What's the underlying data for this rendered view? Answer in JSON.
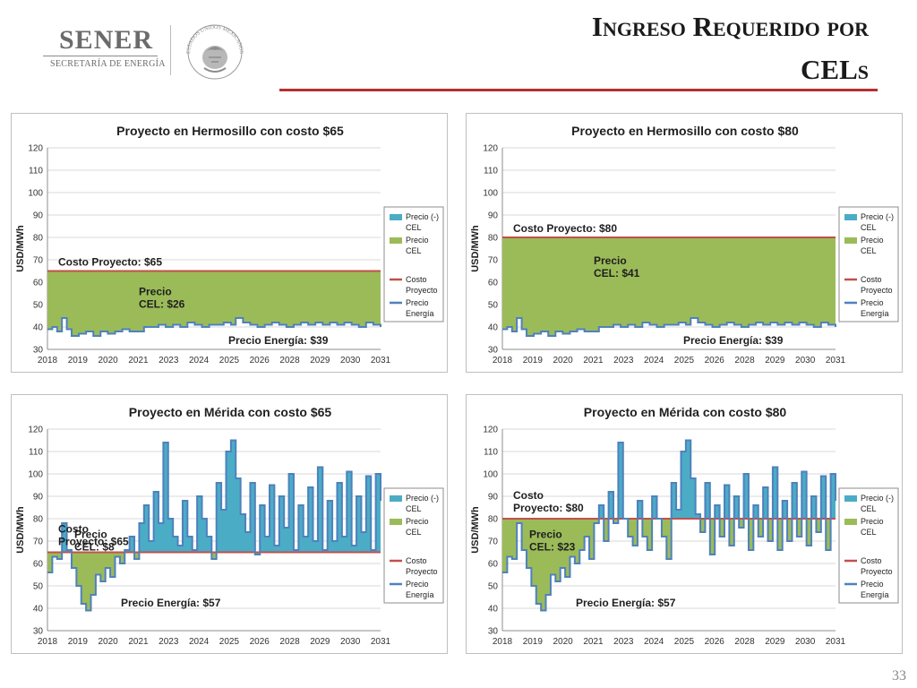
{
  "header": {
    "logo_name": "SENER",
    "logo_subtitle": "SECRETARÍA DE ENERGÍA",
    "seal_text": "ESTADOS UNIDOS MEXICANOS",
    "title_line1": "Ingreso Requerido por",
    "title_line2": "CELs"
  },
  "page_number": "33",
  "colors": {
    "cel_negative": "#4bacc6",
    "cel": "#9bbb59",
    "cost_line": "#c0504d",
    "energy_line": "#4f81bd",
    "title_rule": "#b53030"
  },
  "chart_data": [
    {
      "type": "area",
      "title": "Proyecto en Hermosillo con costo $65",
      "ylabel": "USD/MWh",
      "ylim": [
        30,
        120
      ],
      "yticks": [
        30,
        40,
        50,
        60,
        70,
        80,
        90,
        100,
        110,
        120
      ],
      "xlabels": [
        "2018",
        "2019",
        "2020",
        "2021",
        "2023",
        "2024",
        "2025",
        "2026",
        "2028",
        "2029",
        "2030",
        "2031"
      ],
      "cost": 65,
      "legend": [
        "Precio (-) CEL",
        "Precio CEL",
        "Costo Proyecto",
        "Precio Energía"
      ],
      "annotations": [
        {
          "text": "Costo Proyecto: $65",
          "anchor": "above-cost-left"
        },
        {
          "text": "Precio\nCEL: $26",
          "anchor": "mid-center"
        },
        {
          "text": "Precio Energía: $39",
          "anchor": "bottom-right"
        }
      ],
      "x": [
        2018.0,
        2018.2,
        2018.4,
        2018.6,
        2018.8,
        2019.0,
        2019.3,
        2019.6,
        2019.9,
        2020.2,
        2020.5,
        2020.8,
        2021.1,
        2021.4,
        2021.7,
        2022.0,
        2022.3,
        2022.6,
        2022.9,
        2023.2,
        2023.5,
        2023.8,
        2024.1,
        2024.4,
        2024.7,
        2025.0,
        2025.3,
        2025.6,
        2025.8,
        2026.1,
        2026.4,
        2026.7,
        2027.0,
        2027.3,
        2027.6,
        2027.9,
        2028.2,
        2028.5,
        2028.8,
        2029.1,
        2029.4,
        2029.7,
        2030.0,
        2030.3,
        2030.6,
        2030.9,
        2031.2,
        2031.5,
        2031.8
      ],
      "energy": [
        39,
        40,
        38,
        44,
        39,
        36,
        37,
        38,
        36,
        38,
        37,
        38,
        39,
        38,
        38,
        40,
        40,
        41,
        40,
        41,
        40,
        42,
        41,
        40,
        41,
        41,
        42,
        41,
        44,
        42,
        41,
        40,
        41,
        42,
        41,
        40,
        41,
        42,
        41,
        42,
        41,
        42,
        41,
        42,
        41,
        40,
        42,
        41,
        40
      ]
    },
    {
      "type": "area",
      "title": "Proyecto en Hermosillo con costo $80",
      "ylabel": "USD/MWh",
      "ylim": [
        30,
        120
      ],
      "yticks": [
        30,
        40,
        50,
        60,
        70,
        80,
        90,
        100,
        110,
        120
      ],
      "xlabels": [
        "2018",
        "2019",
        "2020",
        "2021",
        "2023",
        "2024",
        "2025",
        "2026",
        "2028",
        "2029",
        "2030",
        "2031"
      ],
      "cost": 80,
      "legend": [
        "Precio (-) CEL",
        "Precio CEL",
        "Costo Proyecto",
        "Precio Energía"
      ],
      "annotations": [
        {
          "text": "Costo Proyecto: $80",
          "anchor": "above-cost-left"
        },
        {
          "text": "Precio\nCEL: $41",
          "anchor": "mid-center"
        },
        {
          "text": "Precio Energía: $39",
          "anchor": "bottom-right"
        }
      ],
      "x": [
        2018.0,
        2018.2,
        2018.4,
        2018.6,
        2018.8,
        2019.0,
        2019.3,
        2019.6,
        2019.9,
        2020.2,
        2020.5,
        2020.8,
        2021.1,
        2021.4,
        2021.7,
        2022.0,
        2022.3,
        2022.6,
        2022.9,
        2023.2,
        2023.5,
        2023.8,
        2024.1,
        2024.4,
        2024.7,
        2025.0,
        2025.3,
        2025.6,
        2025.8,
        2026.1,
        2026.4,
        2026.7,
        2027.0,
        2027.3,
        2027.6,
        2027.9,
        2028.2,
        2028.5,
        2028.8,
        2029.1,
        2029.4,
        2029.7,
        2030.0,
        2030.3,
        2030.6,
        2030.9,
        2031.2,
        2031.5,
        2031.8
      ],
      "energy": [
        39,
        40,
        38,
        44,
        39,
        36,
        37,
        38,
        36,
        38,
        37,
        38,
        39,
        38,
        38,
        40,
        40,
        41,
        40,
        41,
        40,
        42,
        41,
        40,
        41,
        41,
        42,
        41,
        44,
        42,
        41,
        40,
        41,
        42,
        41,
        40,
        41,
        42,
        41,
        42,
        41,
        42,
        41,
        42,
        41,
        40,
        42,
        41,
        40
      ]
    },
    {
      "type": "area",
      "title": "Proyecto en Mérida con costo $65",
      "ylabel": "USD/MWh",
      "ylim": [
        30,
        120
      ],
      "yticks": [
        30,
        40,
        50,
        60,
        70,
        80,
        90,
        100,
        110,
        120
      ],
      "xlabels": [
        "2018",
        "2019",
        "2020",
        "2021",
        "2023",
        "2024",
        "2025",
        "2026",
        "2028",
        "2029",
        "2030",
        "2031"
      ],
      "cost": 65,
      "legend": [
        "Precio (-) CEL",
        "Precio CEL",
        "Costo Proyecto",
        "Precio Energía"
      ],
      "annotations": [
        {
          "text": "Costo\nProyecto: $65",
          "anchor": "above-cost-left"
        },
        {
          "text": "Precio\nCEL: $8",
          "anchor": "below-cost-left"
        },
        {
          "text": "Precio Energía: $57",
          "anchor": "bottom-center"
        }
      ],
      "x": [
        2018.0,
        2018.2,
        2018.4,
        2018.6,
        2018.8,
        2019.0,
        2019.2,
        2019.4,
        2019.6,
        2019.8,
        2020.0,
        2020.2,
        2020.4,
        2020.6,
        2020.8,
        2021.0,
        2021.2,
        2021.4,
        2021.6,
        2021.8,
        2022.0,
        2022.2,
        2022.4,
        2022.6,
        2022.8,
        2023.0,
        2023.2,
        2023.4,
        2023.6,
        2023.8,
        2024.0,
        2024.2,
        2024.4,
        2024.6,
        2024.8,
        2025.0,
        2025.2,
        2025.4,
        2025.6,
        2025.8,
        2026.0,
        2026.2,
        2026.4,
        2026.6,
        2026.8,
        2027.0,
        2027.2,
        2027.4,
        2027.6,
        2027.8,
        2028.0,
        2028.2,
        2028.4,
        2028.6,
        2028.8,
        2029.0,
        2029.2,
        2029.4,
        2029.6,
        2029.8,
        2030.0,
        2030.2,
        2030.4,
        2030.6,
        2030.8,
        2031.0,
        2031.2,
        2031.4,
        2031.6,
        2031.8
      ],
      "energy": [
        56,
        63,
        62,
        78,
        66,
        58,
        50,
        42,
        39,
        46,
        55,
        52,
        58,
        54,
        63,
        60,
        66,
        72,
        62,
        78,
        86,
        70,
        92,
        78,
        114,
        80,
        72,
        68,
        88,
        72,
        66,
        90,
        80,
        72,
        62,
        96,
        84,
        110,
        115,
        98,
        82,
        74,
        96,
        64,
        86,
        72,
        95,
        68,
        90,
        76,
        100,
        66,
        86,
        72,
        94,
        70,
        103,
        66,
        88,
        70,
        96,
        72,
        101,
        68,
        90,
        74,
        99,
        66,
        100,
        88
      ]
    },
    {
      "type": "area",
      "title": "Proyecto en Mérida con costo $80",
      "ylabel": "USD/MWh",
      "ylim": [
        30,
        120
      ],
      "yticks": [
        30,
        40,
        50,
        60,
        70,
        80,
        90,
        100,
        110,
        120
      ],
      "xlabels": [
        "2018",
        "2019",
        "2020",
        "2021",
        "2023",
        "2024",
        "2025",
        "2026",
        "2028",
        "2029",
        "2030",
        "2031"
      ],
      "cost": 80,
      "legend": [
        "Precio (-) CEL",
        "Precio CEL",
        "Costo Proyecto",
        "Precio Energía"
      ],
      "annotations": [
        {
          "text": "Costo\nProyecto: $80",
          "anchor": "above-cost-left"
        },
        {
          "text": "Precio\nCEL: $23",
          "anchor": "below-cost-left"
        },
        {
          "text": "Precio Energía: $57",
          "anchor": "bottom-center"
        }
      ],
      "x": [
        2018.0,
        2018.2,
        2018.4,
        2018.6,
        2018.8,
        2019.0,
        2019.2,
        2019.4,
        2019.6,
        2019.8,
        2020.0,
        2020.2,
        2020.4,
        2020.6,
        2020.8,
        2021.0,
        2021.2,
        2021.4,
        2021.6,
        2021.8,
        2022.0,
        2022.2,
        2022.4,
        2022.6,
        2022.8,
        2023.0,
        2023.2,
        2023.4,
        2023.6,
        2023.8,
        2024.0,
        2024.2,
        2024.4,
        2024.6,
        2024.8,
        2025.0,
        2025.2,
        2025.4,
        2025.6,
        2025.8,
        2026.0,
        2026.2,
        2026.4,
        2026.6,
        2026.8,
        2027.0,
        2027.2,
        2027.4,
        2027.6,
        2027.8,
        2028.0,
        2028.2,
        2028.4,
        2028.6,
        2028.8,
        2029.0,
        2029.2,
        2029.4,
        2029.6,
        2029.8,
        2030.0,
        2030.2,
        2030.4,
        2030.6,
        2030.8,
        2031.0,
        2031.2,
        2031.4,
        2031.6,
        2031.8
      ],
      "energy": [
        56,
        63,
        62,
        78,
        66,
        58,
        50,
        42,
        39,
        46,
        55,
        52,
        58,
        54,
        63,
        60,
        66,
        72,
        62,
        78,
        86,
        70,
        92,
        78,
        114,
        80,
        72,
        68,
        88,
        72,
        66,
        90,
        80,
        72,
        62,
        96,
        84,
        110,
        115,
        98,
        82,
        74,
        96,
        64,
        86,
        72,
        95,
        68,
        90,
        76,
        100,
        66,
        86,
        72,
        94,
        70,
        103,
        66,
        88,
        70,
        96,
        72,
        101,
        68,
        90,
        74,
        99,
        66,
        100,
        88
      ]
    }
  ]
}
